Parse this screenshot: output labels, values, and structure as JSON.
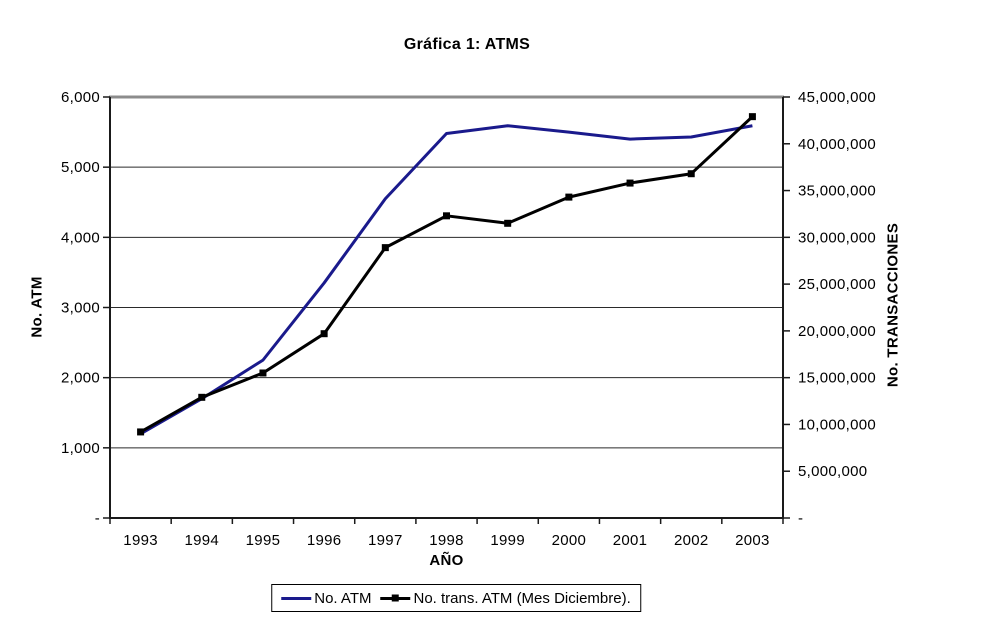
{
  "title": "Gráfica 1: ATMS",
  "chart_data": {
    "type": "line",
    "title": "Gráfica 1: ATMS",
    "categories": [
      "1993",
      "1994",
      "1995",
      "1996",
      "1997",
      "1998",
      "1999",
      "2000",
      "2001",
      "2002",
      "2003"
    ],
    "series": [
      {
        "name": "No. ATM",
        "axis": "left",
        "color": "#1a1a8c",
        "marker": "none",
        "values": [
          1200,
          1700,
          2250,
          3350,
          4550,
          5480,
          5590,
          5500,
          5400,
          5430,
          5590
        ]
      },
      {
        "name": "No. trans. ATM (Mes Diciembre).",
        "axis": "right",
        "color": "#000000",
        "marker": "square",
        "values": [
          9200000,
          12900000,
          15500000,
          19700000,
          28900000,
          32300000,
          31500000,
          34300000,
          35800000,
          36800000,
          42900000
        ]
      }
    ],
    "xlabel": "AÑO",
    "left_axis": {
      "title": "No. ATM",
      "min": 0,
      "max": 6000,
      "tick_values": [
        0,
        1000,
        2000,
        3000,
        4000,
        5000,
        6000
      ],
      "tick_labels": [
        "-",
        "1,000",
        "2,000",
        "3,000",
        "4,000",
        "5,000",
        "6,000"
      ]
    },
    "right_axis": {
      "title": "No. TRANSACCIONES",
      "min": 0,
      "max": 45000000,
      "tick_values": [
        0,
        5000000,
        10000000,
        15000000,
        20000000,
        25000000,
        30000000,
        35000000,
        40000000,
        45000000
      ],
      "tick_labels": [
        "-",
        "5,000,000",
        "10,000,000",
        "15,000,000",
        "20,000,000",
        "25,000,000",
        "30,000,000",
        "35,000,000",
        "40,000,000",
        "45,000,000"
      ]
    },
    "grid": "horizontal",
    "legend_position": "bottom",
    "frame_top_color": "#8c8c8c",
    "axis_line_color": "#1a1a1a",
    "gridline_color": "#2a2a2a"
  },
  "legend": {
    "items": [
      {
        "label": "No. ATM",
        "color": "#1a1a8c",
        "marker": "line"
      },
      {
        "label": "No. trans. ATM (Mes Diciembre).",
        "color": "#000000",
        "marker": "line-square"
      }
    ]
  }
}
